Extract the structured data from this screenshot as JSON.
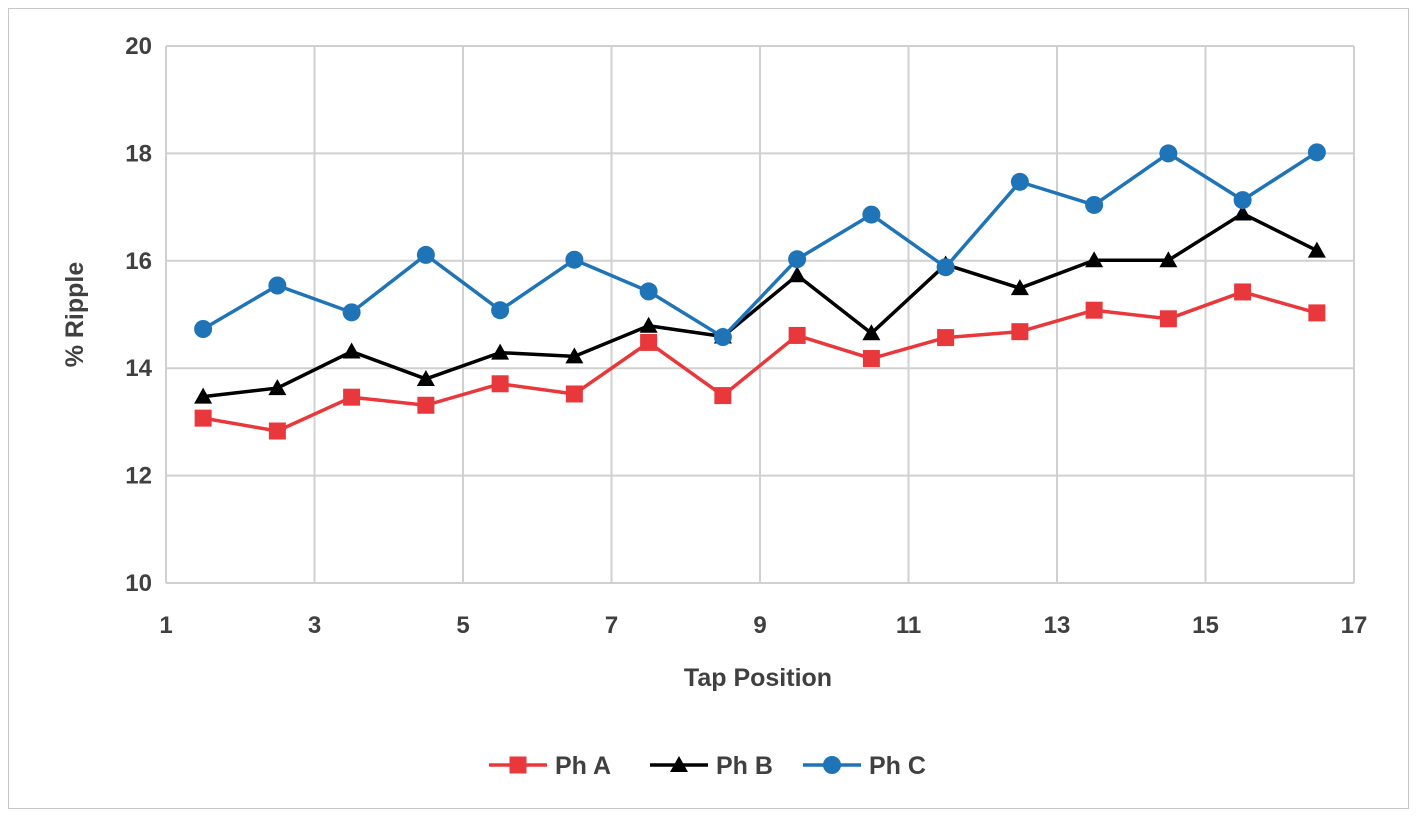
{
  "chart_data": {
    "type": "line",
    "title": "",
    "xlabel": "Tap Position",
    "ylabel": "% Ripple",
    "xlim": [
      1,
      17
    ],
    "ylim": [
      10,
      20
    ],
    "x_ticks": [
      1,
      3,
      5,
      7,
      9,
      11,
      13,
      15,
      17
    ],
    "y_ticks": [
      10,
      12,
      14,
      16,
      18,
      20
    ],
    "grid": true,
    "legend_position": "bottom",
    "x": [
      1.5,
      2.5,
      3.5,
      4.5,
      5.5,
      6.5,
      7.5,
      8.5,
      9.5,
      10.5,
      11.5,
      12.5,
      13.5,
      14.5,
      15.5,
      16.5
    ],
    "series": [
      {
        "name": "Ph A",
        "color": "#e8383b",
        "marker": "square",
        "values": [
          13.07,
          12.83,
          13.46,
          13.31,
          13.71,
          13.52,
          14.48,
          13.49,
          14.61,
          14.18,
          14.57,
          14.68,
          15.08,
          14.92,
          15.42,
          15.03
        ]
      },
      {
        "name": "Ph B",
        "color": "#000000",
        "marker": "triangle",
        "values": [
          13.47,
          13.63,
          14.31,
          13.8,
          14.29,
          14.22,
          14.79,
          14.59,
          15.73,
          14.65,
          15.93,
          15.49,
          16.01,
          16.01,
          16.88,
          16.19
        ]
      },
      {
        "name": "Ph C",
        "color": "#1f74b8",
        "marker": "circle",
        "values": [
          14.73,
          15.54,
          15.04,
          16.11,
          15.08,
          16.02,
          15.43,
          14.58,
          16.03,
          16.86,
          15.88,
          17.47,
          17.04,
          18.0,
          17.13,
          18.02
        ]
      }
    ]
  }
}
